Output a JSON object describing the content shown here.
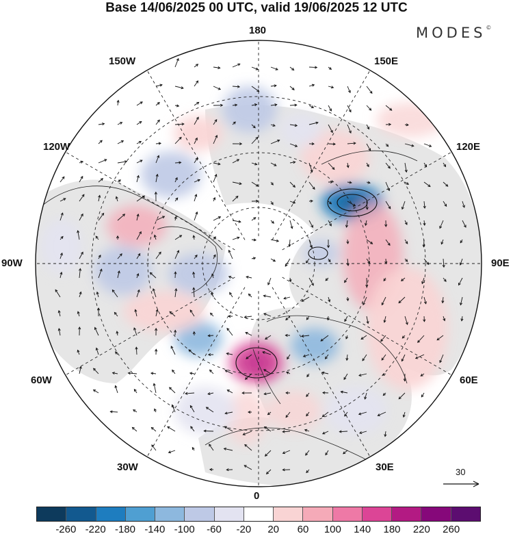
{
  "title": "Base 14/06/2025 00 UTC, valid 19/06/2025 12 UTC",
  "brand": "MODES",
  "brand_mark": "©",
  "longitude_labels": {
    "top": "180",
    "bottom": "0",
    "left": "90W",
    "right": "90E",
    "upper_left_1": "150W",
    "upper_left_2": "120W",
    "lower_left_1": "60W",
    "lower_left_2": "30W",
    "upper_right_1": "150E",
    "upper_right_2": "120E",
    "lower_right_1": "60E",
    "lower_right_2": "30E"
  },
  "reference_vector": {
    "label": "30"
  },
  "colorbar": {
    "colors": [
      "#0d3a5c",
      "#12598f",
      "#1e7dbf",
      "#4f9fd2",
      "#8db8de",
      "#bec9e6",
      "#e3e3f1",
      "#ffffff",
      "#f9d4d4",
      "#f5aab8",
      "#ee79a6",
      "#dc4596",
      "#b31a83",
      "#86087a",
      "#5c0d70"
    ],
    "ticks": [
      "-260",
      "-220",
      "-180",
      "-140",
      "-100",
      "-60",
      "-20",
      "20",
      "60",
      "100",
      "140",
      "180",
      "220",
      "260"
    ]
  }
}
